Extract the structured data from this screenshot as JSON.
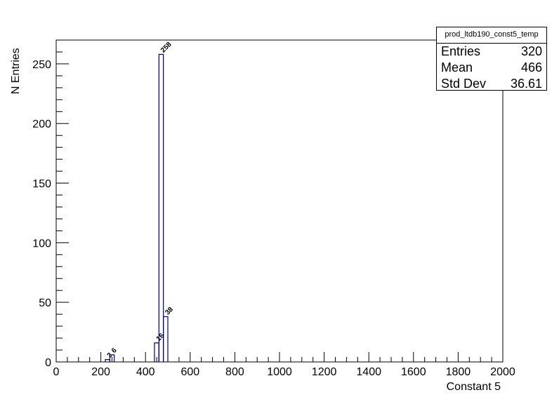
{
  "chart_data": {
    "type": "histogram",
    "title": "",
    "xlabel": "Constant 5",
    "ylabel": "N Entries",
    "xlim": [
      0,
      2000
    ],
    "ylim": [
      0,
      270
    ],
    "bin_width": 20,
    "xticks": [
      0,
      200,
      400,
      600,
      800,
      1000,
      1200,
      1400,
      1600,
      1800,
      2000
    ],
    "yticks": [
      0,
      50,
      100,
      150,
      200,
      250
    ],
    "bins": [
      {
        "x": 220,
        "value": 2
      },
      {
        "x": 240,
        "value": 6
      },
      {
        "x": 440,
        "value": 16
      },
      {
        "x": 460,
        "value": 258
      },
      {
        "x": 480,
        "value": 38
      }
    ],
    "data_labels": [
      {
        "x": 240,
        "value": 2,
        "text": "2"
      },
      {
        "x": 260,
        "value": 6,
        "text": "6"
      },
      {
        "x": 460,
        "value": 16,
        "text": "16"
      },
      {
        "x": 480,
        "value": 258,
        "text": "258"
      },
      {
        "x": 500,
        "value": 38,
        "text": "38"
      }
    ],
    "line_color": "#000080",
    "grid": false,
    "legend": "none"
  },
  "stats": {
    "name": "prod_ltdb190_const5_temp",
    "rows": [
      {
        "label": "Entries",
        "value": "320"
      },
      {
        "label": "Mean",
        "value": "466"
      },
      {
        "label": "Std Dev",
        "value": "36.61"
      }
    ]
  }
}
